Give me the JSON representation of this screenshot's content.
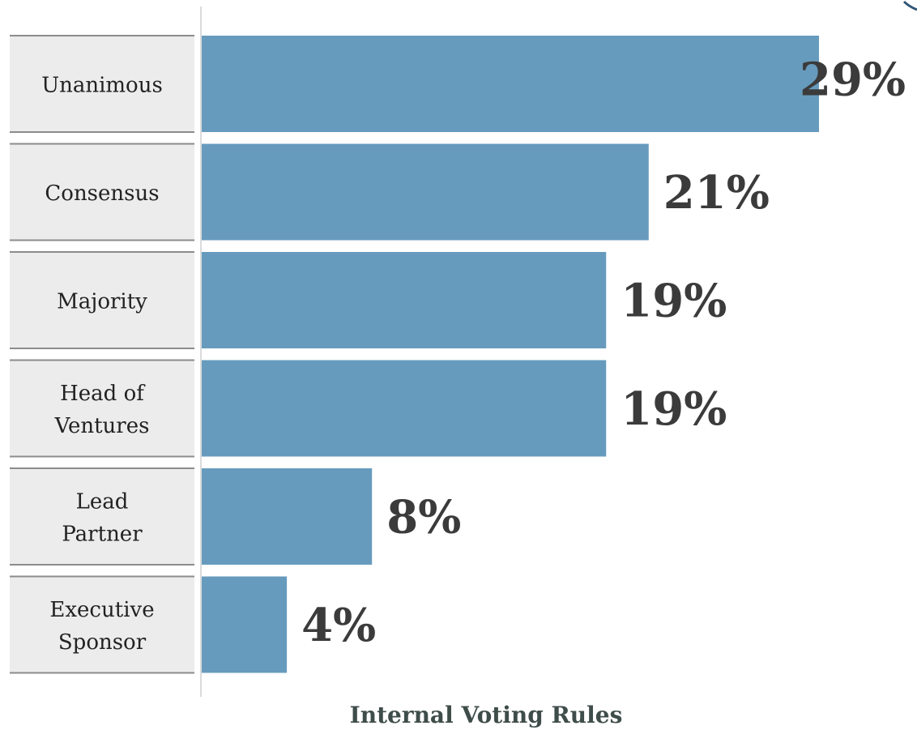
{
  "chart_data": {
    "type": "bar",
    "orientation": "horizontal",
    "title": "Internal Voting Rules",
    "categories": [
      "Unanimous",
      "Consensus",
      "Majority",
      "Head of Ventures",
      "Lead Partner",
      "Executive Sponsor"
    ],
    "category_lines": [
      [
        "Unanimous"
      ],
      [
        "Consensus"
      ],
      [
        "Majority"
      ],
      [
        "Head of",
        "Ventures"
      ],
      [
        "Lead",
        "Partner"
      ],
      [
        "Executive",
        "Sponsor"
      ]
    ],
    "values": [
      29,
      21,
      19,
      19,
      8,
      4
    ],
    "value_labels": [
      "29%",
      "21%",
      "19%",
      "19%",
      "8%",
      "4%"
    ],
    "unit": "%",
    "xlabel": "",
    "ylabel": "",
    "grid": false,
    "legend": "none"
  },
  "colors": {
    "bar": "#679bbd",
    "label_box": "#ececec",
    "label_border": "#8c8c8c",
    "value_text": "#3b3b3b",
    "axis": "#cfcfcf",
    "title": "#3f4d4a"
  }
}
